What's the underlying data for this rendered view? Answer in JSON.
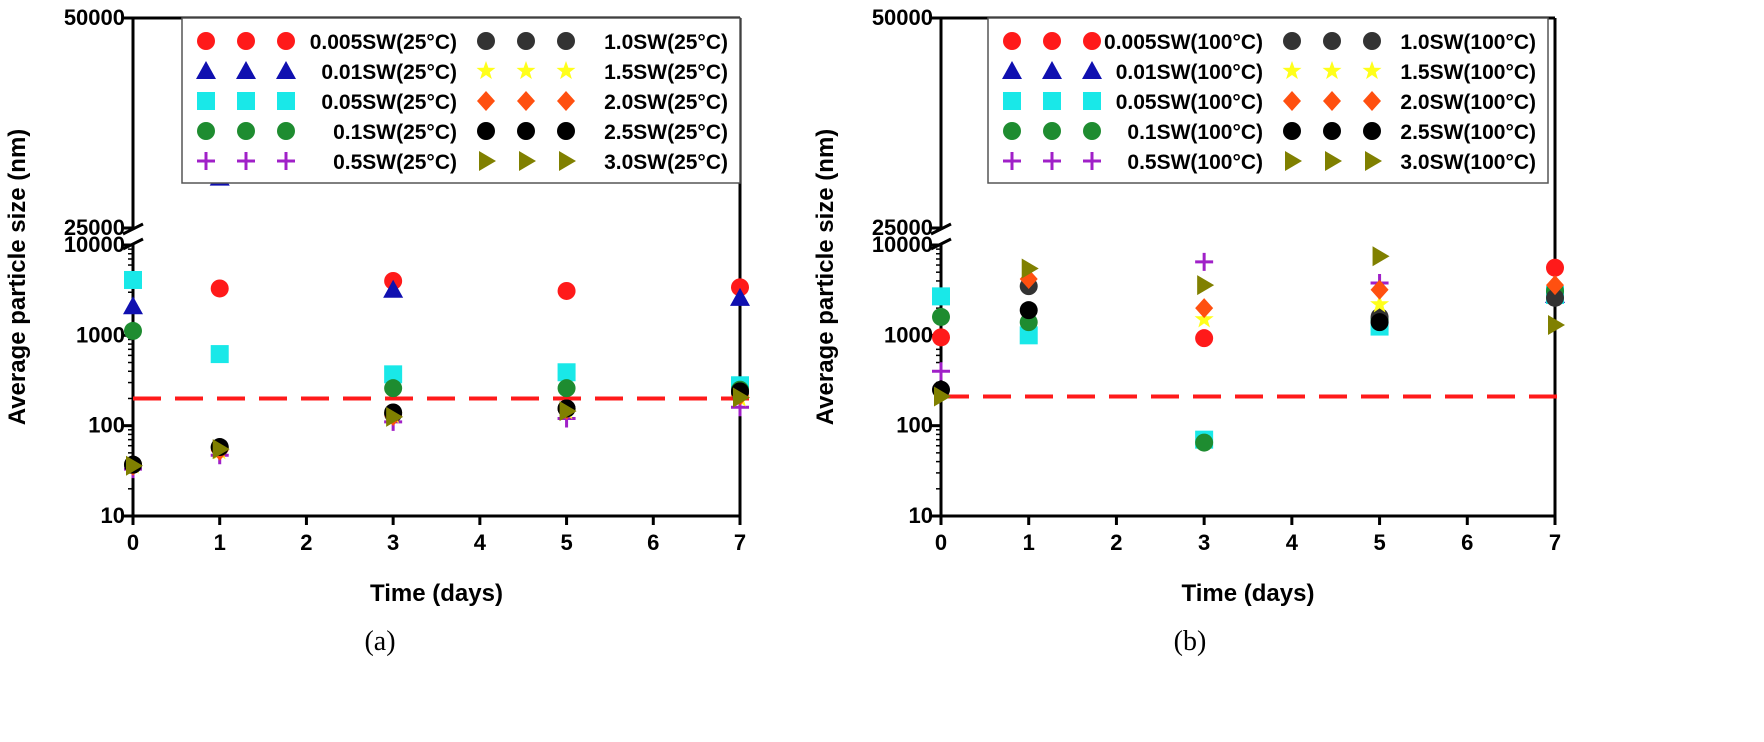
{
  "colors": {
    "S1": "#ff1a1a",
    "S2": "#1010b0",
    "S3": "#19e8e8",
    "S4": "#1e8c30",
    "S5": "#a020c8",
    "S6": "#333333",
    "S7": "#ffff1a",
    "S8": "#ff5010",
    "S9": "#000000",
    "S10": "#808000",
    "threshold": "#ff1a1a"
  },
  "chart_data": [
    {
      "type": "scatter",
      "panel_label": "(a)",
      "xlabel": "Time (days)",
      "ylabel": "Average particle size (nm)",
      "xlim": [
        0,
        7
      ],
      "x_ticks": [
        "0",
        "1",
        "2",
        "3",
        "4",
        "5",
        "6",
        "7"
      ],
      "y_scale": "log with axis break",
      "y_lower_range": [
        10,
        10000
      ],
      "y_upper_range": [
        25000,
        50000
      ],
      "y_ticks": [
        "10",
        "100",
        "1000",
        "10000",
        "25000",
        "50000"
      ],
      "threshold_line": {
        "y": 200,
        "style": "dashed",
        "color": "red"
      },
      "legend_position": "top-right",
      "series": [
        {
          "name": "0.005SW(25°C)",
          "marker": "circle",
          "color_key": "S1",
          "x": [
            1,
            3,
            5,
            7
          ],
          "y": [
            3300,
            4000,
            3100,
            3400
          ]
        },
        {
          "name": "0.01SW(25°C)",
          "marker": "triangle",
          "color_key": "S2",
          "x": [
            0,
            1,
            3,
            7
          ],
          "y": [
            2100,
            31000,
            3200,
            2600
          ]
        },
        {
          "name": "0.05SW(25°C)",
          "marker": "square",
          "color_key": "S3",
          "x": [
            0,
            1,
            3,
            5,
            7
          ],
          "y": [
            4100,
            620,
            370,
            390,
            280
          ]
        },
        {
          "name": "0.1SW(25°C)",
          "marker": "circle",
          "color_key": "S4",
          "x": [
            0,
            3,
            5,
            7
          ],
          "y": [
            1120,
            260,
            260,
            250
          ]
        },
        {
          "name": "0.5SW(25°C)",
          "marker": "plus",
          "color_key": "S5",
          "x": [
            0,
            1,
            3,
            5,
            7
          ],
          "y": [
            33,
            47,
            110,
            120,
            160
          ]
        },
        {
          "name": "1.0SW(25°C)",
          "marker": "circle",
          "color_key": "S6",
          "x": [
            0,
            1,
            3,
            5,
            7
          ],
          "y": [
            37,
            57,
            135,
            155,
            230
          ]
        },
        {
          "name": "1.5SW(25°C)",
          "marker": "star",
          "color_key": "S7",
          "x": [
            0,
            1,
            3,
            5,
            7
          ],
          "y": [
            36,
            52,
            130,
            145,
            200
          ]
        },
        {
          "name": "2.0SW(25°C)",
          "marker": "diamond",
          "color_key": "S8",
          "x": [
            0,
            1,
            3,
            5,
            7
          ],
          "y": [
            36,
            53,
            128,
            150,
            215
          ]
        },
        {
          "name": "2.5SW(25°C)",
          "marker": "circle",
          "color_key": "S9",
          "x": [
            0,
            1,
            3,
            5,
            7
          ],
          "y": [
            37,
            58,
            140,
            155,
            240
          ]
        },
        {
          "name": "3.0SW(25°C)",
          "marker": "triangle-right",
          "color_key": "S10",
          "x": [
            0,
            1,
            3,
            5,
            7
          ],
          "y": [
            36,
            55,
            125,
            145,
            205
          ]
        }
      ]
    },
    {
      "type": "scatter",
      "panel_label": "(b)",
      "xlabel": "Time (days)",
      "ylabel": "Average particle size (nm)",
      "xlim": [
        0,
        7
      ],
      "x_ticks": [
        "0",
        "1",
        "2",
        "3",
        "4",
        "5",
        "6",
        "7"
      ],
      "y_scale": "log with axis break",
      "y_lower_range": [
        10,
        10000
      ],
      "y_upper_range": [
        25000,
        50000
      ],
      "y_ticks": [
        "10",
        "100",
        "1000",
        "10000",
        "25000",
        "50000"
      ],
      "threshold_line": {
        "y": 210,
        "style": "dashed",
        "color": "red"
      },
      "legend_position": "top-right",
      "series": [
        {
          "name": "0.005SW(100°C)",
          "marker": "circle",
          "color_key": "S1",
          "x": [
            0,
            3,
            7
          ],
          "y": [
            950,
            930,
            5600
          ]
        },
        {
          "name": "0.01SW(100°C)",
          "marker": "triangle",
          "color_key": "S2",
          "x": [
            7
          ],
          "y": [
            2800
          ]
        },
        {
          "name": "0.05SW(100°C)",
          "marker": "square",
          "color_key": "S3",
          "x": [
            0,
            1,
            3,
            5,
            7
          ],
          "y": [
            2700,
            1000,
            70,
            1250,
            2800
          ]
        },
        {
          "name": "0.1SW(100°C)",
          "marker": "circle",
          "color_key": "S4",
          "x": [
            0,
            1,
            3,
            5,
            7
          ],
          "y": [
            1600,
            1400,
            65,
            1500,
            3100
          ]
        },
        {
          "name": "0.5SW(100°C)",
          "marker": "plus",
          "color_key": "S5",
          "x": [
            0,
            3,
            5
          ],
          "y": [
            400,
            6500,
            3800
          ]
        },
        {
          "name": "1.0SW(100°C)",
          "marker": "circle",
          "color_key": "S6",
          "x": [
            1,
            5,
            7
          ],
          "y": [
            3500,
            1600,
            2600
          ]
        },
        {
          "name": "1.5SW(100°C)",
          "marker": "star",
          "color_key": "S7",
          "x": [
            3,
            5
          ],
          "y": [
            1500,
            2200
          ]
        },
        {
          "name": "2.0SW(100°C)",
          "marker": "diamond",
          "color_key": "S8",
          "x": [
            1,
            3,
            5,
            7
          ],
          "y": [
            4200,
            2000,
            3200,
            3600
          ]
        },
        {
          "name": "2.5SW(100°C)",
          "marker": "circle",
          "color_key": "S9",
          "x": [
            0,
            1,
            5
          ],
          "y": [
            250,
            1900,
            1400
          ]
        },
        {
          "name": "3.0SW(100°C)",
          "marker": "triangle-right",
          "color_key": "S10",
          "x": [
            0,
            1,
            3,
            5,
            7
          ],
          "y": [
            210,
            5500,
            3600,
            7500,
            1300
          ]
        }
      ]
    }
  ]
}
